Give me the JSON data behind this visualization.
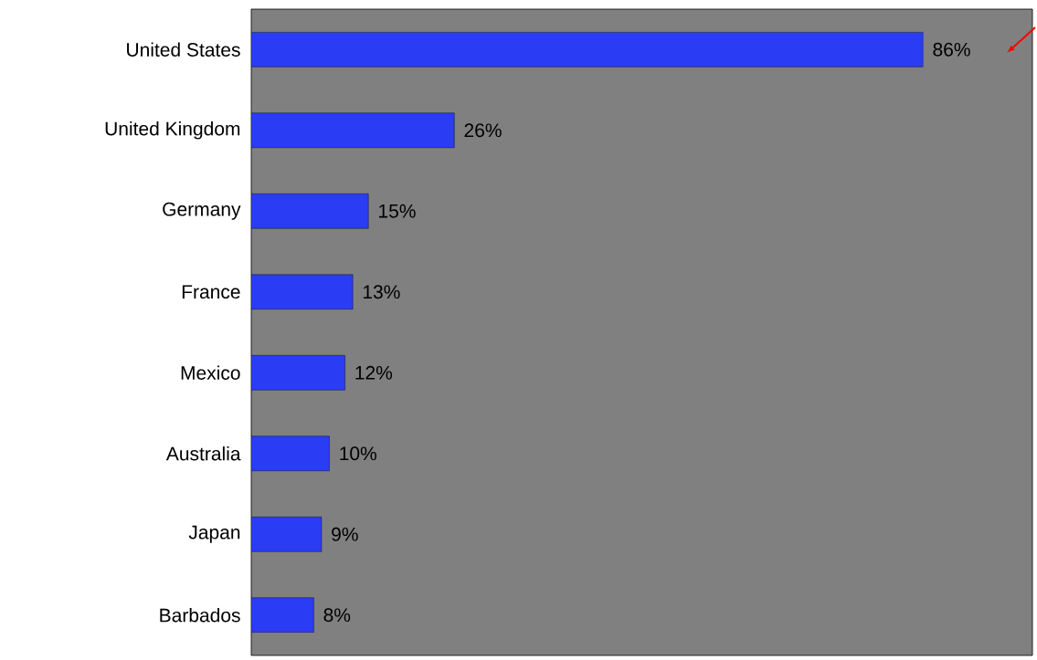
{
  "chart_data": {
    "type": "bar",
    "orientation": "horizontal",
    "categories": [
      "United States",
      "United Kingdom",
      "Germany",
      "France",
      "Mexico",
      "Australia",
      "Japan",
      "Barbados"
    ],
    "values": [
      86,
      26,
      15,
      13,
      12,
      10,
      9,
      8
    ],
    "value_labels": [
      "86%",
      "26%",
      "15%",
      "13%",
      "12%",
      "10%",
      "9%",
      "8%"
    ],
    "color": "#2b3cf5",
    "xlim": [
      0,
      100
    ]
  }
}
